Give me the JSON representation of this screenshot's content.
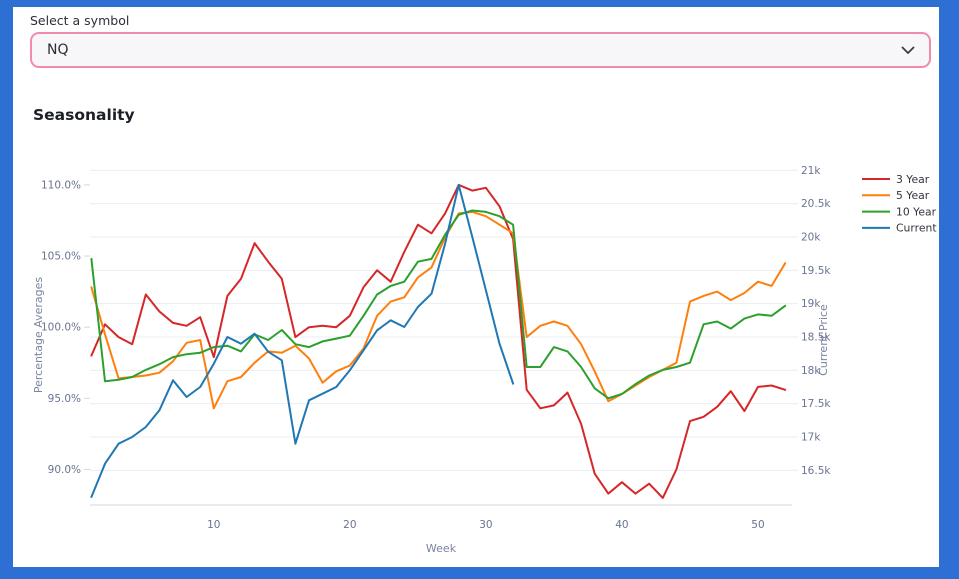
{
  "frame": {
    "color": "#2e6fd4"
  },
  "symbol_picker": {
    "label": "Select a symbol",
    "selected": "NQ",
    "border_color": "#f08bab"
  },
  "section": {
    "title": "Seasonality"
  },
  "chart_data": {
    "type": "line",
    "title": "Seasonality",
    "x_axis": {
      "title": "Week",
      "ticks": [
        10,
        20,
        30,
        40,
        50
      ],
      "min": 0.9,
      "max": 52.5,
      "x_start": 1,
      "grid": false
    },
    "left_axis": {
      "title": "Percentage Averages",
      "tick_values": [
        110,
        105,
        100,
        95,
        90
      ],
      "tick_labels": [
        "110.0%",
        "105.0%",
        "100.0%",
        "95.0%",
        "90.0%"
      ],
      "min": 87.5,
      "max": 111.4,
      "grid": false
    },
    "right_axis": {
      "title": "Current Price",
      "tick_values": [
        21,
        20.5,
        20,
        19.5,
        19,
        18.5,
        18,
        17.5,
        17,
        16.5
      ],
      "tick_labels": [
        "21k",
        "20.5k",
        "20k",
        "19.5k",
        "19k",
        "18.5k",
        "18k",
        "17.5k",
        "17k",
        "16.5k"
      ],
      "min": 15.98,
      "max": 21.08,
      "grid": true
    },
    "legend_position": "right",
    "grid_color": "#ebedf2",
    "axisline_color": "#d4d7de",
    "series": [
      {
        "name": "3 Year",
        "color": "#d62728",
        "axis": "left",
        "values": [
          98.0,
          100.2,
          99.3,
          98.8,
          102.3,
          101.1,
          100.3,
          100.1,
          100.7,
          97.9,
          102.2,
          103.4,
          105.9,
          104.6,
          103.4,
          99.3,
          100.0,
          100.1,
          100.0,
          100.8,
          102.8,
          104.0,
          103.2,
          105.3,
          107.2,
          106.6,
          108.0,
          110.0,
          109.6,
          109.8,
          108.5,
          106.2,
          95.6,
          94.3,
          94.5,
          95.4,
          93.2,
          89.7,
          88.3,
          89.1,
          88.3,
          89.0,
          88.0,
          90.0,
          93.4,
          93.7,
          94.4,
          95.5,
          94.1,
          95.8,
          95.9,
          95.6
        ]
      },
      {
        "name": "5 Year",
        "color": "#ff7f0e",
        "axis": "left",
        "values": [
          102.8,
          99.5,
          96.4,
          96.5,
          96.6,
          96.8,
          97.6,
          98.9,
          99.1,
          94.3,
          96.2,
          96.5,
          97.5,
          98.3,
          98.2,
          98.7,
          97.8,
          96.1,
          96.9,
          97.3,
          98.5,
          100.8,
          101.8,
          102.1,
          103.5,
          104.2,
          106.3,
          108.0,
          108.1,
          107.8,
          107.2,
          106.6,
          99.3,
          100.1,
          100.4,
          100.1,
          98.8,
          96.9,
          94.8,
          95.3,
          95.9,
          96.5,
          97.0,
          97.5,
          101.8,
          102.2,
          102.5,
          101.9,
          102.4,
          103.2,
          102.9,
          104.5
        ]
      },
      {
        "name": "10 Year",
        "color": "#2ca02c",
        "axis": "left",
        "values": [
          104.8,
          96.2,
          96.3,
          96.5,
          97.0,
          97.4,
          97.9,
          98.1,
          98.2,
          98.6,
          98.7,
          98.3,
          99.5,
          99.1,
          99.8,
          98.8,
          98.6,
          99.0,
          99.2,
          99.4,
          100.8,
          102.3,
          102.9,
          103.2,
          104.6,
          104.8,
          106.5,
          107.9,
          108.2,
          108.1,
          107.8,
          107.2,
          97.2,
          97.2,
          98.6,
          98.3,
          97.2,
          95.7,
          95.0,
          95.3,
          96.0,
          96.6,
          97.0,
          97.2,
          97.5,
          100.2,
          100.4,
          99.9,
          100.6,
          100.9,
          100.8,
          101.5
        ]
      },
      {
        "name": "Current",
        "color": "#1f77b4",
        "axis": "right",
        "values": [
          16.1,
          16.6,
          16.9,
          17.0,
          17.15,
          17.4,
          17.85,
          17.6,
          17.75,
          18.1,
          18.5,
          18.4,
          18.55,
          18.28,
          18.15,
          16.9,
          17.55,
          17.65,
          17.75,
          18.0,
          18.3,
          18.6,
          18.75,
          18.65,
          18.95,
          19.15,
          19.9,
          20.78,
          20.0,
          19.2,
          18.4,
          17.8
        ]
      }
    ]
  }
}
